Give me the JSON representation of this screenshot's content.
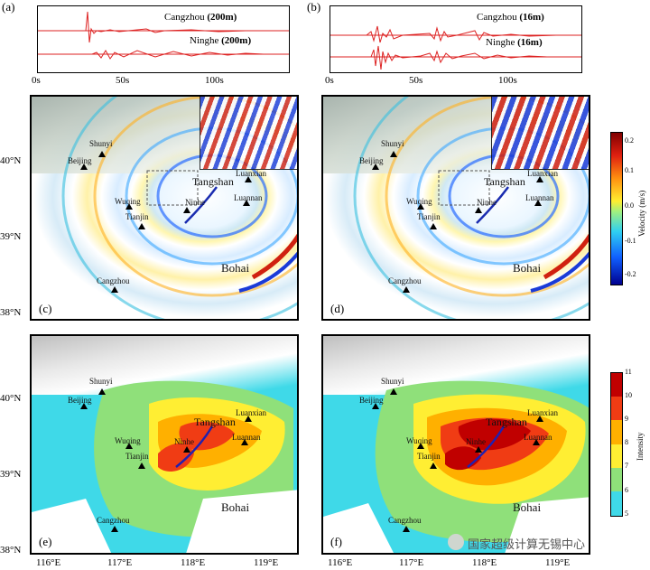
{
  "panels": {
    "a": {
      "letter": "(a)",
      "trace1_name": "Cangzhou ",
      "trace1_depth": "(200m)",
      "trace2_name": "Ninghe ",
      "trace2_depth": "(200m)"
    },
    "b": {
      "letter": "(b)",
      "trace1_name": "Cangzhou ",
      "trace1_depth": "(16m)",
      "trace2_name": "Ninghe ",
      "trace2_depth": "(16m)"
    },
    "c": {
      "letter": "(c)"
    },
    "d": {
      "letter": "(d)"
    },
    "e": {
      "letter": "(e)"
    },
    "f": {
      "letter": "(f)"
    }
  },
  "time_ticks": [
    "0s",
    "50s",
    "100s"
  ],
  "lat_ticks": [
    "40°N",
    "39°N",
    "38°N"
  ],
  "lon_ticks": [
    "116°E",
    "117°E",
    "118°E",
    "119°E"
  ],
  "cities": {
    "shunyi": "Shunyi",
    "beijing": "Beijing",
    "luanxian": "Luanxian",
    "tangshan": "Tangshan",
    "luannan": "Luannan",
    "wuqing": "Wuqing",
    "ninhe": "Ninhe",
    "tianjin": "Tianjin",
    "cangzhou": "Cangzhou",
    "bohai": "Bohai"
  },
  "velocity_bar": {
    "title": "Velocity (m/s)",
    "ticks": [
      "0.2",
      "0.1",
      "0.0",
      "-0.1",
      "-0.2"
    ]
  },
  "intensity_bar": {
    "title": "Intensity",
    "ticks": [
      "11",
      "10",
      "9",
      "8",
      "7",
      "6",
      "5"
    ],
    "colors": [
      "#c00000",
      "#f03c14",
      "#ffb000",
      "#ffee33",
      "#8fe07a",
      "#3fd9e8",
      "#ffffff"
    ]
  },
  "watermark": "国家超级计算无锡中心"
}
